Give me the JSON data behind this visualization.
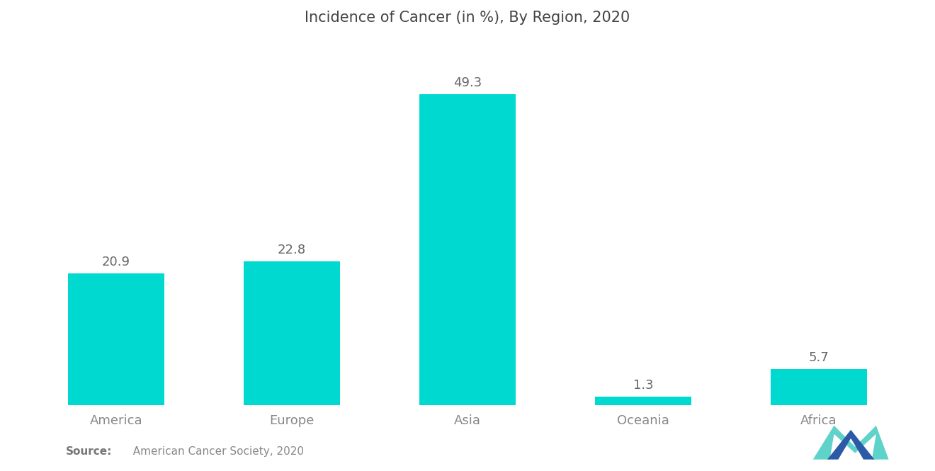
{
  "title": "Incidence of Cancer (in %), By Region, 2020",
  "categories": [
    "America",
    "Europe",
    "Asia",
    "Oceania",
    "Africa"
  ],
  "values": [
    20.9,
    22.8,
    49.3,
    1.3,
    5.7
  ],
  "bar_color": "#00D9D0",
  "background_color": "#FFFFFF",
  "value_labels": [
    "20.9",
    "22.8",
    "49.3",
    "1.3",
    "5.7"
  ],
  "source_bold": "Source:",
  "source_text": "  American Cancer Society, 2020",
  "title_fontsize": 15,
  "label_fontsize": 13,
  "value_fontsize": 13,
  "source_fontsize": 11,
  "ylim": [
    0,
    58
  ],
  "bar_width": 0.55,
  "logo_back_color": "#4ECDC4",
  "logo_front_color": "#2B5BA8"
}
